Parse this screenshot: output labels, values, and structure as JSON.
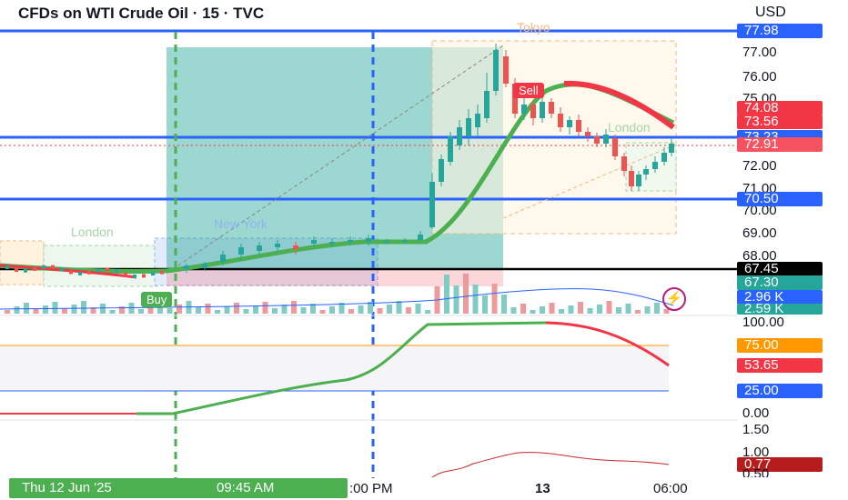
{
  "header": {
    "title": "CFDs on WTI Crude Oil · 15 · TVC",
    "currency": "USD"
  },
  "price_axis": {
    "ticks": [
      "77.00",
      "76.00",
      "75.00",
      "72.00",
      "71.00",
      "70.00",
      "69.00",
      "68.00"
    ],
    "badges": [
      {
        "label": "77.98",
        "color": "#2962ff",
        "name": "badge-77-98"
      },
      {
        "label": "74.08",
        "color": "#f23645",
        "name": "badge-74-08"
      },
      {
        "label": "73.56",
        "color": "#f23645",
        "name": "badge-73-56"
      },
      {
        "label": "73.23",
        "color": "#2962ff",
        "name": "badge-73-23"
      },
      {
        "label": "72.91",
        "color": "#f7525f",
        "name": "badge-72-91"
      },
      {
        "label": "70.50",
        "color": "#2962ff",
        "name": "badge-70-50"
      },
      {
        "label": "67.45",
        "color": "#000000",
        "name": "badge-67-45"
      },
      {
        "label": "67.30",
        "color": "#26a69a",
        "name": "badge-67-30"
      },
      {
        "label": "2.96 K",
        "color": "#2962ff",
        "name": "badge-volume-2-96k"
      },
      {
        "label": "2.59 K",
        "color": "#26a69a",
        "name": "badge-volume-2-59k"
      }
    ]
  },
  "sessions": {
    "tokyo": "Tokyo",
    "london_right": "London",
    "london_left": "London",
    "new_york": "New York"
  },
  "tags": {
    "buy": "Buy",
    "sell": "Sell"
  },
  "oscillator": {
    "ticks": [
      "100.00",
      "0.00"
    ],
    "badges": [
      {
        "label": "75.00",
        "color": "#ff9800",
        "name": "badge-osc-75"
      },
      {
        "label": "53.65",
        "color": "#f23645",
        "name": "badge-osc-53-65"
      },
      {
        "label": "25.00",
        "color": "#2962ff",
        "name": "badge-osc-25"
      }
    ]
  },
  "lower_indicator": {
    "ticks": [
      "1.50",
      "1.00",
      "0.50"
    ],
    "badge": {
      "label": "0.77",
      "color": "#b71c1c"
    }
  },
  "time_axis": {
    "cursor_date": "Thu 12 Jun '25",
    "cursor_time": "09:45 AM",
    "labels": [
      ":00 PM",
      "13",
      "06:00"
    ]
  },
  "icons": {
    "flash": "flash-icon"
  }
}
